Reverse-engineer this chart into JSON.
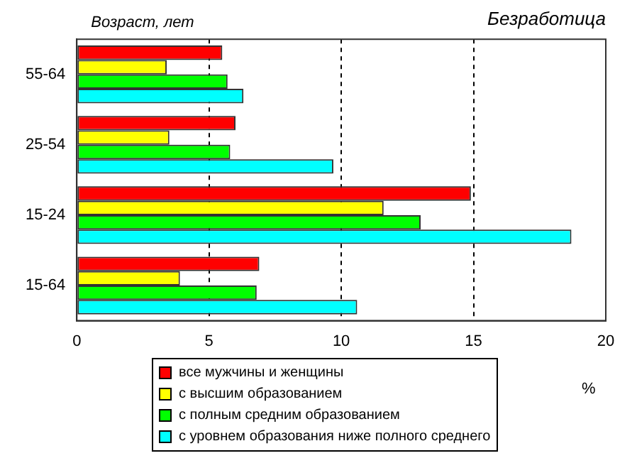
{
  "chart_data": {
    "type": "bar",
    "orientation": "horizontal",
    "title": "Безработица",
    "ylabel": "Возраст, лет",
    "xlabel": "%",
    "categories": [
      "55-64",
      "25-54",
      "15-24",
      "15-64"
    ],
    "series": [
      {
        "name": "все мужчины и женщины",
        "color": "#ff0000",
        "values": [
          5.5,
          6.0,
          14.9,
          6.9
        ]
      },
      {
        "name": "с высшим образованием",
        "color": "#ffff00",
        "values": [
          3.4,
          3.5,
          11.6,
          3.9
        ]
      },
      {
        "name": "с  полным средним образованием",
        "color": "#00ff00",
        "values": [
          5.7,
          5.8,
          13.0,
          6.8
        ]
      },
      {
        "name": "с уровнем образования ниже полного среднего",
        "color": "#00ffff",
        "values": [
          6.3,
          9.7,
          18.7,
          10.6
        ]
      }
    ],
    "xlim": [
      0,
      20
    ],
    "xticks": [
      0,
      5,
      10,
      15,
      20
    ],
    "grid": "x",
    "legend": "bottom"
  }
}
